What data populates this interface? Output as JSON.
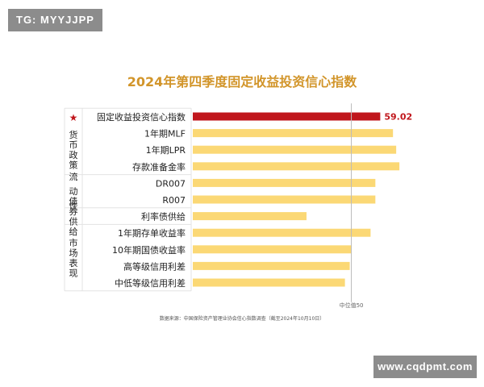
{
  "watermark_top": "TG: MYYJJPP",
  "watermark_bottom": "www.cqdpmt.com",
  "chart_data": {
    "type": "bar",
    "orientation": "horizontal",
    "title": "2024年第四季度固定收益投资信心指数",
    "categories": [
      "固定收益投资信心指数",
      "1年期MLF",
      "1年期LPR",
      "存款准备金率",
      "DR007",
      "R007",
      "利率债供给",
      "1年期存单收益率",
      "10年期国债收益率",
      "高等级信用利差",
      "中低等级信用利差"
    ],
    "values": [
      59.02,
      63,
      64,
      65,
      57.5,
      57.5,
      36,
      56,
      50,
      49.5,
      48
    ],
    "highlight": {
      "index": 0,
      "label": "59.02",
      "marker": "★"
    },
    "groups": [
      {
        "label": "货币政策",
        "members": [
          1,
          2,
          3
        ]
      },
      {
        "label": "流动性",
        "members": [
          4,
          5
        ]
      },
      {
        "label": "债券供给",
        "members": [
          6
        ]
      },
      {
        "label": "市场表现",
        "members": [
          7,
          8,
          9,
          10
        ]
      }
    ],
    "reference_line": {
      "value": 50,
      "label": "中位值50"
    },
    "xlim": [
      0,
      69
    ],
    "source": "数据来源：中国保险资产管理业协会信心指数调查（截至2024年10月10日）",
    "colors": {
      "highlight": "#c0161c",
      "bar": "#fbd875",
      "title": "#d2952a",
      "label_highlight": "#c0161c",
      "reference": "#bbbbbb"
    }
  }
}
